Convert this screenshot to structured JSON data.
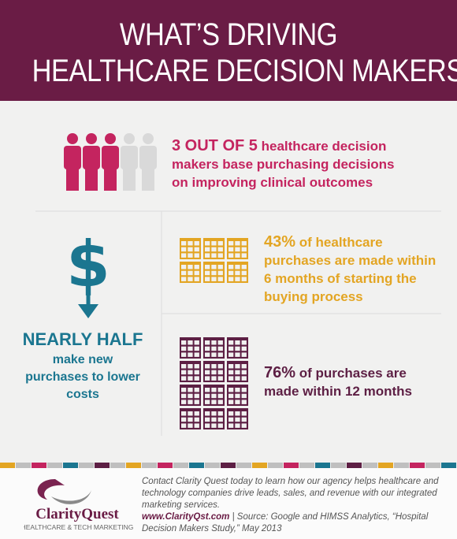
{
  "header": {
    "title_lines": [
      "WHAT’S DRIVING",
      "HEALTHCARE DECISION MAKERS?"
    ]
  },
  "stats": [
    {
      "highlight": "3 OUT OF 5",
      "text": " healthcare decision makers base purchasing decisions on improving clinical outcomes"
    },
    {
      "highlight": "43%",
      "text": " of healthcare purchases are made within 6 months of starting the buying process"
    },
    {
      "highlight": "76%",
      "text": " of purchases are made within 12 months"
    }
  ],
  "cost": {
    "symbol": "$",
    "headline": "NEARLY HALF",
    "text": "make new purchases to lower costs"
  },
  "footer": {
    "logo": "ClarityQuest",
    "logo_tagline": "HEALTHCARE & TECH MARKETING",
    "contact": "Contact Clarity Quest today to learn how our agency helps healthcare and technology companies drive leads, sales, and revenue with our integrated marketing services.",
    "url": "www.ClarityQst.com",
    "source": " | Source: Google and HIMSS Analytics, “Hospital Decision Makers Study,” May 2013"
  }
}
